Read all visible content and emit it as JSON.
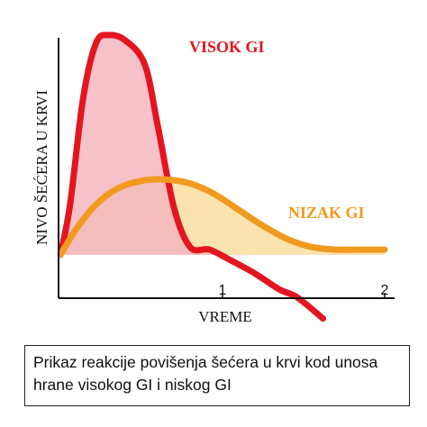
{
  "chart_data": {
    "type": "line",
    "xlabel": "VREME",
    "ylabel": "NIVO ŠEĆERA U KRVI",
    "x_ticks": [
      "1",
      "2"
    ],
    "x_tick_values": [
      1,
      2
    ],
    "xlim": [
      0,
      2.05
    ],
    "ylim": [
      0,
      10
    ],
    "series": [
      {
        "name": "VISOK GI",
        "color": "#e3161f",
        "fill": "#f4b6bf",
        "x": [
          0.0,
          0.06,
          0.14,
          0.22,
          0.3,
          0.4,
          0.52,
          0.6,
          0.7,
          0.8,
          0.92,
          1.05,
          1.2,
          1.35,
          1.46,
          1.62
        ],
        "y": [
          1.6,
          3.5,
          7.5,
          9.6,
          9.9,
          9.7,
          8.8,
          6.5,
          3.4,
          1.9,
          1.8,
          1.4,
          0.9,
          0.3,
          0.0,
          -0.8
        ]
      },
      {
        "name": "NIZAK GI",
        "color": "#f19a1d",
        "fill": "#fbe3b0",
        "x": [
          0.0,
          0.1,
          0.22,
          0.35,
          0.5,
          0.65,
          0.8,
          0.95,
          1.1,
          1.25,
          1.4,
          1.55,
          1.7,
          1.85,
          2.0
        ],
        "y": [
          1.6,
          2.6,
          3.5,
          4.1,
          4.4,
          4.45,
          4.3,
          3.9,
          3.3,
          2.7,
          2.2,
          1.9,
          1.8,
          1.8,
          1.8
        ]
      }
    ],
    "baseline": 1.6
  },
  "caption": {
    "line1": "Prikaz reakcije povišenja šećera u krvi kod unosa",
    "line2": "hrane visokog GI i niskog GI"
  }
}
